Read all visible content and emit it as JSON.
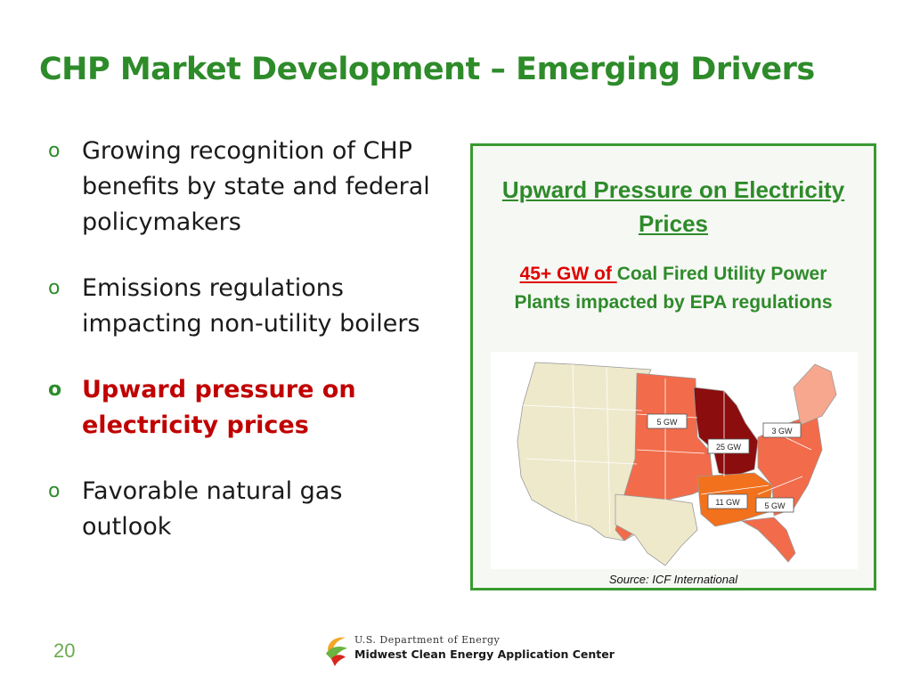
{
  "title": "CHP Market Development – Emerging Drivers",
  "bullet_marker": "o",
  "bullets": [
    {
      "text": "Growing recognition of CHP benefits by state and federal policymakers"
    },
    {
      "text": "Emissions regulations impacting non-utility boilers"
    },
    {
      "text": "Upward pressure on electricity prices"
    },
    {
      "text": "Favorable natural gas outlook"
    }
  ],
  "panel": {
    "heading": "Upward Pressure on Electricity Prices",
    "stat_highlight": "45+ GW of ",
    "stat_text": "Coal Fired Utility Power Plants impacted by EPA regulations",
    "map_labels": [
      "5 GW",
      "25 GW",
      "3 GW",
      "11 GW",
      "5 GW"
    ],
    "source": "Source: ICF International"
  },
  "colors": {
    "title_green": "#2e8b2a",
    "highlight_red": "#c00000",
    "map_base": "#efe9cc",
    "map_light": "#f7a78e",
    "map_medium": "#f26b4a",
    "map_orange": "#f2711c",
    "map_dark": "#8b0d0d"
  },
  "page_number": "20",
  "footer": {
    "org_line": "U.S. Department of Energy",
    "center_name": "Midwest Clean Energy Application Center"
  }
}
